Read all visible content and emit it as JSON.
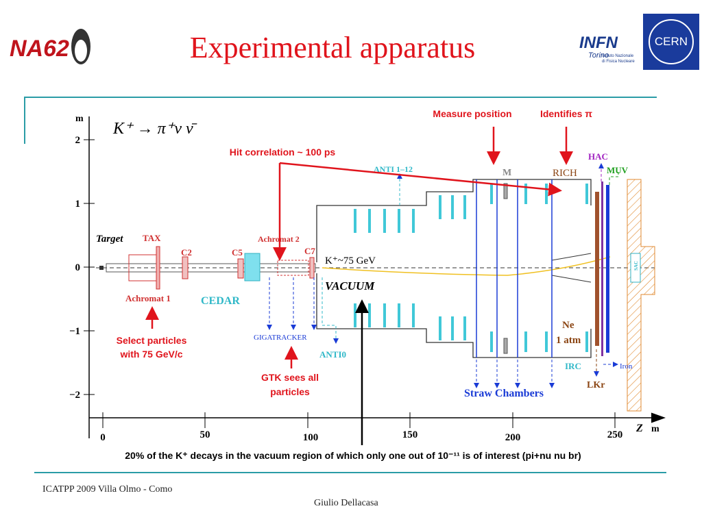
{
  "header": {
    "title": "Experimental apparatus",
    "logos": {
      "na62": "NA62",
      "infn": "INFN",
      "infn_city": "Torino",
      "infn_name": [
        "Istituto Nazionale",
        "di Fisica Nucleare"
      ],
      "cern": "CERN"
    }
  },
  "diagram": {
    "formula": "K⁺ → π⁺ν ν̄",
    "y_axis": {
      "unit": "m",
      "ticks": [
        "2",
        "1",
        "0",
        "−1",
        "−2"
      ]
    },
    "x_axis": {
      "unit": "m",
      "label": "Z",
      "ticks": [
        "0",
        "50",
        "100",
        "150",
        "200",
        "250"
      ]
    },
    "components": {
      "target": "Target",
      "tax": "TAX",
      "c2": "C2",
      "c5": "C5",
      "achromat1": "Achromat 1",
      "cedar": "CEDAR",
      "achromat2": "Achromat 2",
      "c7": "C7",
      "beam": "K⁺~75 GeV",
      "vacuum": "VACUUM",
      "anti": "ANTI 1–12",
      "magnet": "M",
      "rich": "RICH",
      "hac": "HAC",
      "muv": "MUV",
      "gigatracker": "GIGATRACKER",
      "anti0": "ANTI0",
      "straw": "Straw Chambers",
      "ne": [
        "Ne",
        "1 atm"
      ],
      "irc": "IRC",
      "lkr": "LKr",
      "iron": "Iron",
      "sac": "SAC"
    },
    "annotations": {
      "measure": "Measure position",
      "identifies": "Identifies π",
      "hit": "Hit correlation ~ 100 ps",
      "select": [
        "Select particles",
        "with 75 GeV/c"
      ],
      "gtk": [
        "GTK sees all",
        "particles"
      ]
    },
    "caption": "20% of the K⁺ decays in the vacuum region of which only one out of 10⁻¹¹ is of interest (pi+nu nu br)"
  },
  "footer": {
    "event": "ICATPP 2009 Villa Olmo - Como",
    "author": "Giulio Dellacasa"
  }
}
